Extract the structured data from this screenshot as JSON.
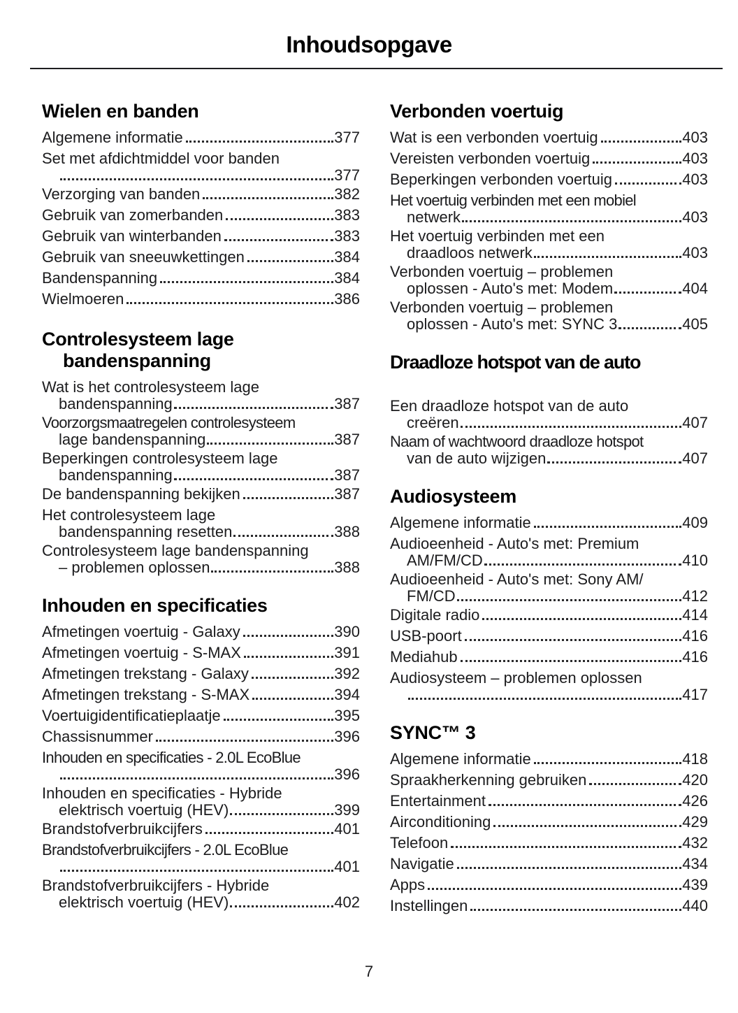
{
  "page": {
    "title": "Inhoudsopgave",
    "page_number": "7"
  },
  "columns": [
    {
      "sections": [
        {
          "heading_lines": [
            "Wielen en banden"
          ],
          "items": [
            {
              "text": "Algemene informatie",
              "page": "377"
            },
            {
              "text": "Set met afdichtmiddel voor banden",
              "cont": "",
              "page": "377"
            },
            {
              "text": "Verzorging van banden",
              "page": "382"
            },
            {
              "text": "Gebruik van zomerbanden",
              "page": "383"
            },
            {
              "text": "Gebruik van winterbanden",
              "page": "383"
            },
            {
              "text": "Gebruik van sneeuwkettingen",
              "page": "384"
            },
            {
              "text": "Bandenspanning",
              "page": "384"
            },
            {
              "text": "Wielmoeren",
              "page": "386"
            }
          ]
        },
        {
          "heading_lines": [
            "Controlesysteem lage",
            "bandenspanning"
          ],
          "items": [
            {
              "text": "Wat is het controlesysteem lage",
              "cont": "bandenspanning",
              "page": "387"
            },
            {
              "text": "Voorzorgsmaatregelen controlesysteem",
              "cont": "lage bandenspanning",
              "page": "387"
            },
            {
              "text": "Beperkingen controlesysteem lage",
              "cont": "bandenspanning",
              "page": "387"
            },
            {
              "text": "De bandenspanning bekijken",
              "page": "387"
            },
            {
              "text": "Het controlesysteem lage",
              "cont": "bandenspanning resetten",
              "page": "388"
            },
            {
              "text": "Controlesysteem lage bandenspanning",
              "cont": "– problemen oplossen",
              "page": "388"
            }
          ]
        },
        {
          "heading_lines": [
            "Inhouden en specificaties"
          ],
          "items": [
            {
              "text": "Afmetingen voertuig - Galaxy",
              "page": "390"
            },
            {
              "text": "Afmetingen voertuig - S-MAX",
              "page": "391"
            },
            {
              "text": "Afmetingen trekstang - Galaxy",
              "page": "392"
            },
            {
              "text": "Afmetingen trekstang - S-MAX",
              "page": "394"
            },
            {
              "text": "Voertuigidentificatieplaatje",
              "page": "395"
            },
            {
              "text": "Chassisnummer",
              "page": "396"
            },
            {
              "text": "Inhouden en specificaties - 2.0L EcoBlue",
              "cont": "",
              "page": "396"
            },
            {
              "text": "Inhouden en specificaties - Hybride",
              "cont": "elektrisch voertuig (HEV)",
              "page": "399"
            },
            {
              "text": "Brandstofverbruikcijfers",
              "page": "401"
            },
            {
              "text": "Brandstofverbruikcijfers - 2.0L EcoBlue",
              "cont": "",
              "page": "401"
            },
            {
              "text": "Brandstofverbruikcijfers - Hybride",
              "cont": "elektrisch voertuig (HEV)",
              "page": "402"
            }
          ]
        }
      ]
    },
    {
      "sections": [
        {
          "heading_lines": [
            "Verbonden voertuig"
          ],
          "items": [
            {
              "text": "Wat is een verbonden voertuig",
              "page": "403"
            },
            {
              "text": "Vereisten verbonden voertuig",
              "page": "403"
            },
            {
              "text": "Beperkingen verbonden voertuig",
              "page": "403"
            },
            {
              "text": "Het voertuig verbinden met een mobiel",
              "cont": "netwerk",
              "page": "403"
            },
            {
              "text": "Het voertuig verbinden met een",
              "cont": "draadloos netwerk",
              "page": "403"
            },
            {
              "text": "Verbonden voertuig – problemen",
              "cont": "oplossen - Auto's met: Modem",
              "page": "404"
            },
            {
              "text": "Verbonden voertuig – problemen",
              "cont": "oplossen - Auto's met: SYNC 3",
              "page": "405"
            }
          ]
        },
        {
          "heading_lines": [
            "Draadloze hotspot van de auto"
          ],
          "items": [
            {
              "text": "Een draadloze hotspot van de auto",
              "cont": "creëren",
              "page": "407"
            },
            {
              "text": "Naam of wachtwoord draadloze hotspot",
              "cont": "van de auto wijzigen",
              "page": "407"
            }
          ]
        },
        {
          "heading_lines": [
            "Audiosysteem"
          ],
          "items": [
            {
              "text": "Algemene informatie",
              "page": "409"
            },
            {
              "text": "Audioeenheid - Auto's met: Premium",
              "cont": "AM/FM/CD",
              "page": "410"
            },
            {
              "text": "Audioeenheid - Auto's met: Sony AM/",
              "cont": "FM/CD",
              "page": "412"
            },
            {
              "text": "Digitale radio",
              "page": "414"
            },
            {
              "text": "USB-poort",
              "page": "416"
            },
            {
              "text": "Mediahub",
              "page": "416"
            },
            {
              "text": "Audiosysteem – problemen oplossen",
              "cont": "",
              "page": "417"
            }
          ]
        },
        {
          "heading_lines": [
            "SYNC™ 3"
          ],
          "items": [
            {
              "text": "Algemene informatie",
              "page": "418"
            },
            {
              "text": "Spraakherkenning gebruiken",
              "page": "420"
            },
            {
              "text": "Entertainment",
              "page": "426"
            },
            {
              "text": "Airconditioning",
              "page": "429"
            },
            {
              "text": "Telefoon",
              "page": "432"
            },
            {
              "text": "Navigatie",
              "page": "434"
            },
            {
              "text": "Apps",
              "page": "439"
            },
            {
              "text": "Instellingen",
              "page": "440"
            }
          ]
        }
      ]
    }
  ]
}
